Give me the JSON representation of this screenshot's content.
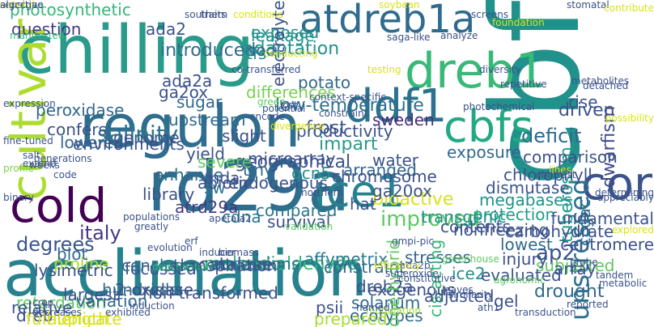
{
  "words": [
    {
      "text": "chilling",
      "color": "#2a9b8a"
    },
    {
      "text": "regulon",
      "color": "#2f6e8e"
    },
    {
      "text": "acclimation",
      "color": "#26828e"
    },
    {
      "text": "rd29a",
      "color": "#2e6d8e"
    },
    {
      "text": "cbf",
      "color": "#21918c"
    },
    {
      "text": "atdreb1a",
      "color": "#2f6b8e"
    },
    {
      "text": "dreb1",
      "color": "#38b977"
    },
    {
      "text": "cold",
      "color": "#440154"
    },
    {
      "text": "cultivar",
      "color": "#addc30"
    },
    {
      "text": "cbfs",
      "color": "#22a884"
    },
    {
      "text": "ddf1",
      "color": "#2c728e"
    },
    {
      "text": "ice1",
      "color": "#26828e"
    },
    {
      "text": "cor",
      "color": "#3b528b"
    },
    {
      "text": "unstressed",
      "color": "#2d708e"
    },
    {
      "text": "low-temperature",
      "color": "#2d708e"
    },
    {
      "text": "dwarfism",
      "color": "#3e4a89"
    },
    {
      "text": "malondialdehyde",
      "color": "#35b779"
    },
    {
      "text": "improved",
      "color": "#5ec962"
    },
    {
      "text": "degrees",
      "color": "#3a538b"
    },
    {
      "text": "salinity",
      "color": "#2a788e"
    },
    {
      "text": "introduced",
      "color": "#2f6c8e"
    },
    {
      "text": "adaptation",
      "color": "#21918c"
    },
    {
      "text": "photosynthetic",
      "color": "#35b779"
    },
    {
      "text": "driven",
      "color": "#3b528b"
    },
    {
      "text": "drought",
      "color": "#31688e"
    },
    {
      "text": "catalase",
      "color": "#3b528b"
    },
    {
      "text": "deficit",
      "color": "#31688e"
    },
    {
      "text": "frost",
      "color": "#3b528b"
    },
    {
      "text": "impart",
      "color": "#2a9b8a"
    },
    {
      "text": "ap2",
      "color": "#3b528b"
    },
    {
      "text": "proline",
      "color": "#a8db34"
    },
    {
      "text": "geographical",
      "color": "#3b528b"
    },
    {
      "text": "tuberosum",
      "color": "#1f9e89"
    },
    {
      "text": "italy",
      "color": "#443a83"
    },
    {
      "text": "sweden",
      "color": "#472d7b"
    },
    {
      "text": "water",
      "color": "#3b528b"
    },
    {
      "text": "bioactive",
      "color": "#d8e219"
    },
    {
      "text": "exposure",
      "color": "#31688e"
    },
    {
      "text": "subjected",
      "color": "#5ec962"
    },
    {
      "text": "ccgac",
      "color": "#2c728e"
    },
    {
      "text": "productivity",
      "color": "#3b528b"
    },
    {
      "text": "megabases",
      "color": "#21918c"
    },
    {
      "text": "contents",
      "color": "#3b528b"
    },
    {
      "text": "nonfreezing",
      "color": "#3b528b"
    },
    {
      "text": "question",
      "color": "#443a83"
    },
    {
      "text": "focussed",
      "color": "#3b528b"
    },
    {
      "text": "constraint",
      "color": "#31688e"
    },
    {
      "text": "accessions",
      "color": "#2d708e"
    },
    {
      "text": "non-transformed",
      "color": "#3b528b"
    },
    {
      "text": "solanum",
      "color": "#31688e"
    },
    {
      "text": "conclude",
      "color": "#31688e"
    },
    {
      "text": "lysimetric",
      "color": "#3b528b"
    },
    {
      "text": "retardation",
      "color": "#5ec962"
    },
    {
      "text": "blot",
      "color": "#31688e"
    },
    {
      "text": "atrd29a",
      "color": "#443a83"
    },
    {
      "text": "dreb2a",
      "color": "#3b528b"
    },
    {
      "text": "affymetrix",
      "color": "#2a788e"
    },
    {
      "text": "centromere",
      "color": "#3b528b"
    },
    {
      "text": "carbohydrate",
      "color": "#3b528b"
    },
    {
      "text": "protection",
      "color": "#1f9e89"
    },
    {
      "text": "ice2",
      "color": "#21918c"
    },
    {
      "text": "largest",
      "color": "#3b528b"
    },
    {
      "text": "dreb",
      "color": "#3b528b"
    },
    {
      "text": "hundreds",
      "color": "#31688e"
    },
    {
      "text": "ecotypes",
      "color": "#31688e"
    },
    {
      "text": "psii",
      "color": "#3b528b"
    },
    {
      "text": "ada2",
      "color": "#3b528b"
    },
    {
      "text": "exposed",
      "color": "#21918c"
    },
    {
      "text": "peroxidase",
      "color": "#31688e"
    },
    {
      "text": "leakage",
      "color": "#21918c"
    },
    {
      "text": "potato",
      "color": "#31688e"
    },
    {
      "text": "differences",
      "color": "#7ad151"
    },
    {
      "text": "gcn5",
      "color": "#21918c"
    },
    {
      "text": "slight",
      "color": "#3b528b"
    },
    {
      "text": "sw",
      "color": "#2a788e"
    },
    {
      "text": "cdna",
      "color": "#2a788e"
    },
    {
      "text": "hat",
      "color": "#3b528b"
    },
    {
      "text": "mda",
      "color": "#3b528b"
    },
    {
      "text": "endogenous",
      "color": "#3b528b"
    },
    {
      "text": "microarray",
      "color": "#3b528b"
    },
    {
      "text": "ada2a",
      "color": "#3b528b"
    },
    {
      "text": "ga2ox",
      "color": "#3b528b"
    },
    {
      "text": "tfs",
      "color": "#21918c"
    },
    {
      "text": "sod",
      "color": "#31688e"
    },
    {
      "text": "tiny",
      "color": "#31688e"
    },
    {
      "text": "sugar",
      "color": "#31688e"
    },
    {
      "text": "upstream",
      "color": "#31688e"
    },
    {
      "text": "yield",
      "color": "#3b528b"
    },
    {
      "text": "abiotic",
      "color": "#3b528b"
    },
    {
      "text": "severe",
      "color": "#5ec962"
    },
    {
      "text": "library",
      "color": "#3b528b"
    },
    {
      "text": "enhance",
      "color": "#31688e"
    },
    {
      "text": "transpiration",
      "color": "#3b528b"
    },
    {
      "text": "survival",
      "color": "#3b528b"
    },
    {
      "text": "compared",
      "color": "#2a788e"
    },
    {
      "text": "stresses",
      "color": "#31688e"
    },
    {
      "text": "transgenic",
      "color": "#21918c"
    },
    {
      "text": "arranged",
      "color": "#31688e"
    },
    {
      "text": "chromosome",
      "color": "#3b528b"
    },
    {
      "text": "ga20ox",
      "color": "#3b528b"
    },
    {
      "text": "comparison",
      "color": "#3b528b"
    },
    {
      "text": "chlorophyll",
      "color": "#3b528b"
    },
    {
      "text": "rise",
      "color": "#3b528b"
    },
    {
      "text": "fundamental",
      "color": "#3b528b"
    },
    {
      "text": "lowest",
      "color": "#31688e"
    },
    {
      "text": "dismutase",
      "color": "#3b528b"
    },
    {
      "text": "injury",
      "color": "#3b528b"
    },
    {
      "text": "array",
      "color": "#3b528b"
    },
    {
      "text": "gel",
      "color": "#3b528b"
    },
    {
      "text": "genome",
      "color": "#3b528b"
    },
    {
      "text": "lowered",
      "color": "#31688e"
    },
    {
      "text": "confers",
      "color": "#3b528b"
    },
    {
      "text": "environments",
      "color": "#3b528b"
    },
    {
      "text": "variation",
      "color": "#31688e"
    },
    {
      "text": "full-length",
      "color": "#d8e219"
    },
    {
      "text": "relative",
      "color": "#3b528b"
    },
    {
      "text": "duplicate",
      "color": "#d8e219"
    },
    {
      "text": "exogenous",
      "color": "#3b528b"
    },
    {
      "text": "2-oxidase",
      "color": "#3b528b"
    },
    {
      "text": "cis-acting",
      "color": "#35b779"
    },
    {
      "text": "one-hybrid",
      "color": "#5ec962"
    },
    {
      "text": "adjusted",
      "color": "#3b528b"
    },
    {
      "text": "evaluated",
      "color": "#3b528b"
    },
    {
      "text": "prepared",
      "color": "#a8db34"
    },
    {
      "text": "electrolyte",
      "color": "#3b528b"
    },
    {
      "text": "manifested",
      "color": "#35b779"
    },
    {
      "text": "expression",
      "color": "#3b528b"
    },
    {
      "text": "fine-tuned",
      "color": "#3b528b"
    },
    {
      "text": "profile",
      "color": "#7ad151"
    },
    {
      "text": "salt",
      "color": "#3b528b"
    },
    {
      "text": "extend",
      "color": "#3b528b"
    },
    {
      "text": "weeks",
      "color": "#3b528b"
    },
    {
      "text": "binary",
      "color": "#3b528b"
    },
    {
      "text": "populations",
      "color": "#3b528b"
    },
    {
      "text": "greatly",
      "color": "#3b528b"
    },
    {
      "text": "evolution",
      "color": "#3b528b"
    },
    {
      "text": "deactivation",
      "color": "#35b779"
    },
    {
      "text": "apetala2",
      "color": "#3b528b"
    },
    {
      "text": "biomass",
      "color": "#3b528b"
    },
    {
      "text": "erf",
      "color": "#3b528b"
    },
    {
      "text": "inducer",
      "color": "#3b528b"
    },
    {
      "text": "validation",
      "color": "#5ec962"
    },
    {
      "text": "northern",
      "color": "#3b528b"
    },
    {
      "text": "ada2b",
      "color": "#3b528b"
    },
    {
      "text": "gmpi-pic",
      "color": "#3b528b"
    },
    {
      "text": "greenhouse",
      "color": "#5ec962"
    },
    {
      "text": "agronomic",
      "color": "#5ec962"
    },
    {
      "text": "efficiency",
      "color": "#d8e219"
    },
    {
      "text": "superoxide",
      "color": "#3b528b"
    },
    {
      "text": "constitutive",
      "color": "#3b528b"
    },
    {
      "text": "similarity",
      "color": "#3b528b"
    },
    {
      "text": "ath1",
      "color": "#3b528b"
    },
    {
      "text": "leaves",
      "color": "#3b528b"
    },
    {
      "text": "modulation",
      "color": "#a8db34"
    },
    {
      "text": "named",
      "color": "#3b528b"
    },
    {
      "text": "crop",
      "color": "#3b528b"
    },
    {
      "text": "decreases",
      "color": "#3b528b"
    },
    {
      "text": "exhibited",
      "color": "#3b528b"
    },
    {
      "text": "induction",
      "color": "#3b528b"
    },
    {
      "text": "soybean",
      "color": "#d8e219"
    },
    {
      "text": "southern",
      "color": "#3b528b"
    },
    {
      "text": "traits",
      "color": "#3b528b"
    },
    {
      "text": "conditions",
      "color": "#d8e219"
    },
    {
      "text": "screens",
      "color": "#3b528b"
    },
    {
      "text": "foundation",
      "color": "#d8e219"
    },
    {
      "text": "stomatal",
      "color": "#3b528b"
    },
    {
      "text": "contribute",
      "color": "#d8e219"
    },
    {
      "text": "analyze",
      "color": "#3b528b"
    },
    {
      "text": "saga-like",
      "color": "#3b528b"
    },
    {
      "text": "co-transferred",
      "color": "#3b528b"
    },
    {
      "text": "conducting",
      "color": "#d8e219"
    },
    {
      "text": "testing",
      "color": "#d8e219"
    },
    {
      "text": "diversity",
      "color": "#3b528b"
    },
    {
      "text": "possibility",
      "color": "#d8e219"
    },
    {
      "text": "determining",
      "color": "#3b528b"
    },
    {
      "text": "repetitive",
      "color": "#3b528b"
    },
    {
      "text": "photochemical",
      "color": "#3b528b"
    },
    {
      "text": "metabolites",
      "color": "#3b528b"
    },
    {
      "text": "detached",
      "color": "#3b528b"
    },
    {
      "text": "green",
      "color": "#5ec962"
    },
    {
      "text": "potential",
      "color": "#3b528b"
    },
    {
      "text": "lost",
      "color": "#3b528b"
    },
    {
      "text": "encode",
      "color": "#3b528b"
    },
    {
      "text": "constraint",
      "color": "#3b528b"
    },
    {
      "text": "context-specific",
      "color": "#3b528b"
    },
    {
      "text": "divergence",
      "color": "#d8e219"
    },
    {
      "text": "generations",
      "color": "#3b528b"
    },
    {
      "text": "code",
      "color": "#3b528b"
    },
    {
      "text": "lines",
      "color": "#d8e219"
    },
    {
      "text": "contrast",
      "color": "#3b528b"
    },
    {
      "text": "appreciably",
      "color": "#3b528b"
    },
    {
      "text": "explored",
      "color": "#d8e219"
    },
    {
      "text": "probe",
      "color": "#3b528b"
    },
    {
      "text": "tandem",
      "color": "#3b528b"
    },
    {
      "text": "metabolic",
      "color": "#3b528b"
    },
    {
      "text": "reported",
      "color": "#3b528b"
    },
    {
      "text": "transduction",
      "color": "#3b528b"
    },
    {
      "text": "sensitive",
      "color": "#3b528b"
    },
    {
      "text": "natural",
      "color": "#d8e219"
    },
    {
      "text": "algccgac",
      "color": "#3b528b"
    }
  ]
}
